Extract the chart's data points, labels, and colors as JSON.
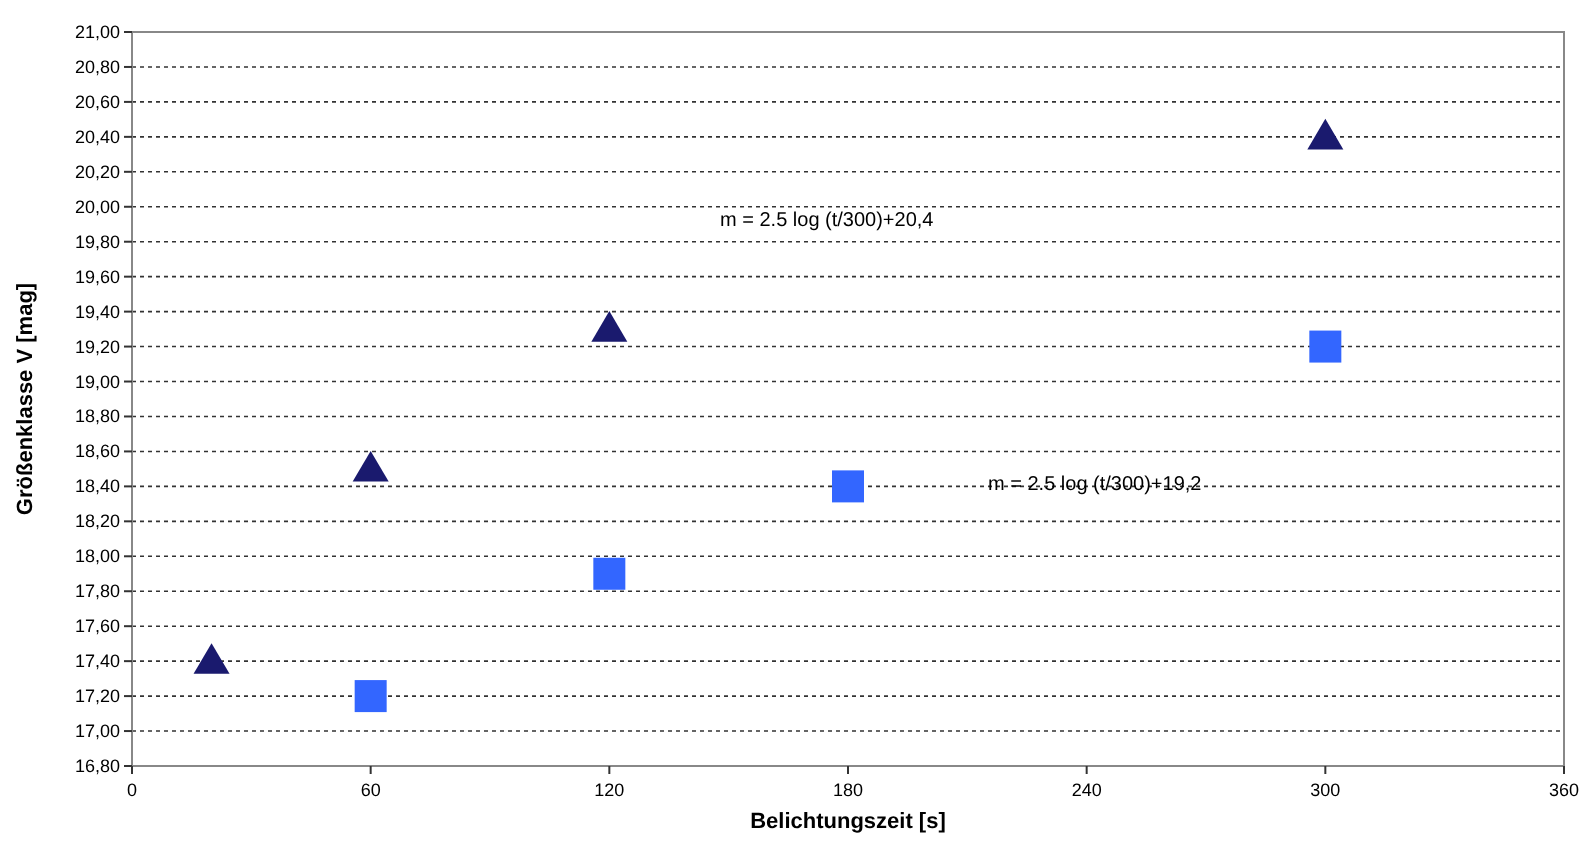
{
  "chart_data": {
    "type": "scatter",
    "xlabel": "Belichtungszeit [s]",
    "ylabel": "Größenklasse V [mag]",
    "series": [
      {
        "color": "#1a1a6e",
        "marker": "triangle",
        "x": [
          20,
          60,
          120,
          300
        ],
        "values": [
          17.4,
          18.5,
          19.3,
          20.4
        ]
      },
      {
        "color": "#3366ff",
        "marker": "square",
        "x": [
          60,
          120,
          180,
          300
        ],
        "values": [
          17.2,
          17.9,
          18.4,
          19.2
        ]
      }
    ],
    "xlim": [
      0,
      360
    ],
    "xticks": [
      0,
      60,
      120,
      180,
      240,
      300,
      360
    ],
    "ylim": [
      16.8,
      21
    ],
    "yticks": [
      {
        "value": 16.8,
        "label": "16,80"
      },
      {
        "value": 17,
        "label": "17,00"
      },
      {
        "value": 17.2,
        "label": "17,20"
      },
      {
        "value": 17.4,
        "label": "17,40"
      },
      {
        "value": 17.6,
        "label": "17,60"
      },
      {
        "value": 17.8,
        "label": "17,80"
      },
      {
        "value": 18,
        "label": "18,00"
      },
      {
        "value": 18.2,
        "label": "18,20"
      },
      {
        "value": 18.4,
        "label": "18,40"
      },
      {
        "value": 18.6,
        "label": "18,60"
      },
      {
        "value": 18.8,
        "label": "18,80"
      },
      {
        "value": 19,
        "label": "19,00"
      },
      {
        "value": 19.2,
        "label": "19,20"
      },
      {
        "value": 19.4,
        "label": "19,40"
      },
      {
        "value": 19.6,
        "label": "19,60"
      },
      {
        "value": 19.8,
        "label": "19,80"
      },
      {
        "value": 20,
        "label": "20,00"
      },
      {
        "value": 20.2,
        "label": "20,20"
      },
      {
        "value": 20.4,
        "label": "20,40"
      },
      {
        "value": 20.6,
        "label": "20,60"
      },
      {
        "value": 20.8,
        "label": "20,80"
      },
      {
        "value": 21,
        "label": "21,00"
      }
    ],
    "grid": "y",
    "annotations": [
      "m = 2.5 log (t/300)+20,4",
      "m = 2.5 log (t/300)+19,2"
    ]
  }
}
